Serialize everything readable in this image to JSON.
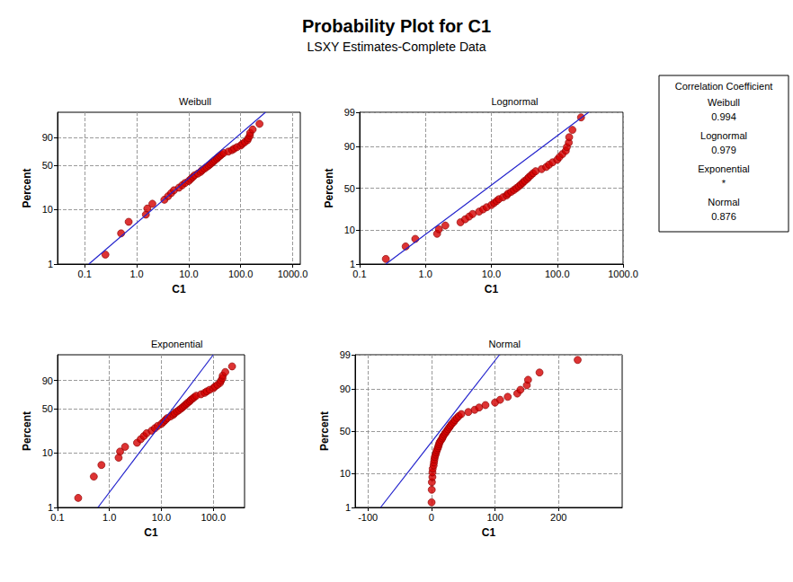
{
  "title": "Probability Plot for C1",
  "subtitle": "LSXY Estimates-Complete Data",
  "annotation": {
    "title": "Correlation Coefficient",
    "entries": [
      {
        "name": "Weibull",
        "value": 0.994
      },
      {
        "name": "Lognormal",
        "value": 0.979
      },
      {
        "name": "Exponential",
        "value": "*"
      },
      {
        "name": "Normal",
        "value": 0.876
      }
    ]
  },
  "chart_data": [
    {
      "type": "extremevalue",
      "title": "Weibull",
      "x_label": "C1",
      "y_label": "Percent",
      "log": "x",
      "grid": true,
      "xlim": [
        0.03,
        1400
      ],
      "xticks": [
        0.1,
        {
          "value": 1,
          "label": "1.0"
        },
        {
          "value": 10,
          "label": "10.0"
        },
        {
          "value": 100,
          "label": "100.0"
        },
        {
          "value": 1000,
          "label": "1000.0"
        }
      ],
      "ylim": [
        1,
        99.9
      ],
      "yticks": [
        1,
        10,
        50,
        90
      ],
      "series": [
        {
          "type": "scatter",
          "color": "#d40000",
          "marker": "circle",
          "x": [
            0.25,
            0.5,
            0.7,
            1.5,
            1.6,
            2.0,
            3.4,
            4.0,
            4.6,
            5.2,
            6.5,
            7.5,
            8.5,
            10,
            11,
            12,
            13,
            15,
            17,
            18,
            20,
            22,
            24,
            26,
            28,
            30,
            32,
            35,
            37,
            40,
            43,
            47,
            58,
            68,
            75,
            85,
            100,
            108,
            120,
            135,
            140,
            150,
            152,
            170,
            230
          ],
          "values": [
            1.5,
            3.7,
            6.0,
            8.1,
            10.4,
            12.6,
            14.8,
            17.0,
            19.2,
            21.4,
            23.6,
            25.8,
            28.0,
            30.2,
            32.4,
            34.6,
            36.8,
            39.0,
            41.2,
            43.4,
            45.6,
            47.8,
            50.0,
            52.2,
            54.4,
            56.6,
            58.8,
            61.0,
            63.2,
            65.4,
            67.6,
            69.8,
            72.0,
            74.2,
            76.4,
            78.6,
            80.8,
            83.0,
            85.2,
            87.4,
            89.6,
            91.9,
            94.1,
            96.3,
            98.5
          ]
        },
        {
          "type": "line",
          "color": "#2222cc",
          "line_style": "solid",
          "x": [
            0.12,
            300
          ],
          "values": [
            1,
            99.9
          ]
        }
      ]
    },
    {
      "type": "gaussian",
      "title": "Lognormal",
      "x_label": "C1",
      "y_label": "Percent",
      "log": "x",
      "grid": true,
      "xlim": [
        0.1,
        1000
      ],
      "xticks": [
        0.1,
        {
          "value": 1,
          "label": "1.0"
        },
        {
          "value": 10,
          "label": "10.0"
        },
        {
          "value": 100,
          "label": "100.0"
        },
        {
          "value": 1000,
          "label": "1000.0"
        }
      ],
      "ylim": [
        1,
        99
      ],
      "yticks": [
        1,
        10,
        50,
        90,
        99
      ],
      "series": [
        {
          "type": "scatter",
          "color": "#d40000",
          "marker": "circle",
          "x": [
            0.25,
            0.5,
            0.7,
            1.5,
            1.6,
            2.0,
            3.4,
            4.0,
            4.6,
            5.2,
            6.5,
            7.5,
            8.5,
            10,
            11,
            12,
            13,
            15,
            17,
            18,
            20,
            22,
            24,
            26,
            28,
            30,
            32,
            35,
            37,
            40,
            43,
            47,
            58,
            68,
            75,
            85,
            100,
            108,
            120,
            135,
            140,
            150,
            152,
            170,
            230
          ],
          "values": [
            1.5,
            3.7,
            6.0,
            8.1,
            10.4,
            12.6,
            14.8,
            17.0,
            19.2,
            21.4,
            23.6,
            25.8,
            28.0,
            30.2,
            32.4,
            34.6,
            36.8,
            39.0,
            41.2,
            43.4,
            45.6,
            47.8,
            50.0,
            52.2,
            54.4,
            56.6,
            58.8,
            61.0,
            63.2,
            65.4,
            67.6,
            69.8,
            72.0,
            74.2,
            76.4,
            78.6,
            80.8,
            83.0,
            85.2,
            87.4,
            89.6,
            91.9,
            94.1,
            96.3,
            98.5
          ]
        },
        {
          "type": "line",
          "color": "#2222cc",
          "line_style": "solid",
          "x": [
            0.25,
            300
          ],
          "values": [
            1,
            99
          ]
        }
      ]
    },
    {
      "type": "extremevalue",
      "title": "Exponential",
      "x_label": "C1",
      "y_label": "Percent",
      "log": "x",
      "grid": true,
      "xlim": [
        0.1,
        400
      ],
      "xticks": [
        0.1,
        {
          "value": 1,
          "label": "1.0"
        },
        {
          "value": 10,
          "label": "10.0"
        },
        {
          "value": 100,
          "label": "100.0"
        }
      ],
      "ylim": [
        1,
        99.9
      ],
      "yticks": [
        1,
        10,
        50,
        90
      ],
      "series": [
        {
          "type": "scatter",
          "color": "#d40000",
          "marker": "circle",
          "x": [
            0.25,
            0.5,
            0.7,
            1.5,
            1.6,
            2.0,
            3.4,
            4.0,
            4.6,
            5.2,
            6.5,
            7.5,
            8.5,
            10,
            11,
            12,
            13,
            15,
            17,
            18,
            20,
            22,
            24,
            26,
            28,
            30,
            32,
            35,
            37,
            40,
            43,
            47,
            58,
            68,
            75,
            85,
            100,
            108,
            120,
            135,
            140,
            150,
            152,
            170,
            230
          ],
          "values": [
            1.5,
            3.7,
            6.0,
            8.1,
            10.4,
            12.6,
            14.8,
            17.0,
            19.2,
            21.4,
            23.6,
            25.8,
            28.0,
            30.2,
            32.4,
            34.6,
            36.8,
            39.0,
            41.2,
            43.4,
            45.6,
            47.8,
            50.0,
            52.2,
            54.4,
            56.6,
            58.8,
            61.0,
            63.2,
            65.4,
            67.6,
            69.8,
            72.0,
            74.2,
            76.4,
            78.6,
            80.8,
            83.0,
            85.2,
            87.4,
            89.6,
            91.9,
            94.1,
            96.3,
            98.5
          ]
        },
        {
          "type": "line",
          "color": "#2222cc",
          "line_style": "solid",
          "x": [
            0.6,
            100
          ],
          "values": [
            1,
            99.9
          ]
        }
      ]
    },
    {
      "type": "gaussian",
      "title": "Normal",
      "x_label": "C1",
      "y_label": "Percent",
      "grid": true,
      "xlim": [
        -120,
        300
      ],
      "xticks": [
        -100,
        0,
        100,
        200
      ],
      "ylim": [
        1,
        99
      ],
      "yticks": [
        1,
        10,
        50,
        90,
        99
      ],
      "series": [
        {
          "type": "scatter",
          "color": "#d40000",
          "marker": "circle",
          "x": [
            0.25,
            0.5,
            0.7,
            1.5,
            1.6,
            2.0,
            3.4,
            4.0,
            4.6,
            5.2,
            6.5,
            7.5,
            8.5,
            10,
            11,
            12,
            13,
            15,
            17,
            18,
            20,
            22,
            24,
            26,
            28,
            30,
            32,
            35,
            37,
            40,
            43,
            47,
            58,
            68,
            75,
            85,
            100,
            108,
            120,
            135,
            140,
            150,
            152,
            170,
            230
          ],
          "values": [
            1.5,
            3.7,
            6.0,
            8.1,
            10.4,
            12.6,
            14.8,
            17.0,
            19.2,
            21.4,
            23.6,
            25.8,
            28.0,
            30.2,
            32.4,
            34.6,
            36.8,
            39.0,
            41.2,
            43.4,
            45.6,
            47.8,
            50.0,
            52.2,
            54.4,
            56.6,
            58.8,
            61.0,
            63.2,
            65.4,
            67.6,
            69.8,
            72.0,
            74.2,
            76.4,
            78.6,
            80.8,
            83.0,
            85.2,
            87.4,
            89.6,
            91.9,
            94.1,
            96.3,
            98.5
          ]
        },
        {
          "type": "line",
          "color": "#2222cc",
          "line_style": "solid",
          "x": [
            -80,
            107
          ],
          "values": [
            1,
            99
          ]
        }
      ]
    }
  ]
}
